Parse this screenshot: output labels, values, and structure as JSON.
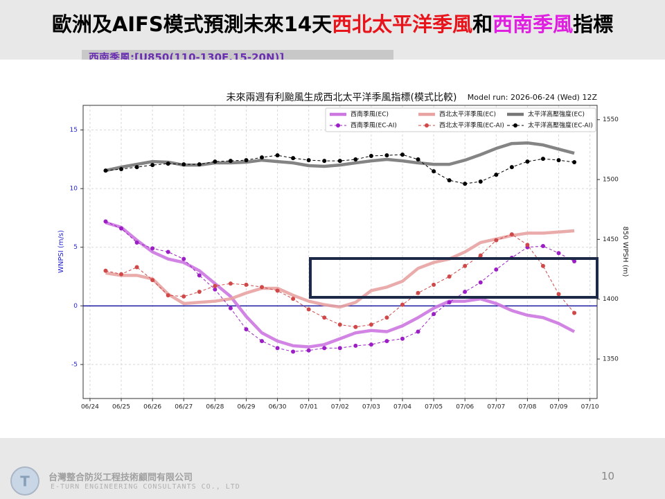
{
  "slide": {
    "title_parts": [
      {
        "text": "歐洲及AIFS模式預測未來14天",
        "color": "#000000"
      },
      {
        "text": "西北太平洋季風",
        "color": "#e8141c"
      },
      {
        "text": "和",
        "color": "#000000"
      },
      {
        "text": "西南季風",
        "color": "#e020e0"
      },
      {
        "text": "指標",
        "color": "#000000"
      }
    ],
    "subtitle": "西南季風:[U850(110-130E,15-20N)]",
    "company": "台灣整合防災工程技術顧問有限公司",
    "company_en": "E-TURN ENGINEERING CONSULTANTS CO., LTD",
    "page_number": 10
  },
  "chart_data": {
    "type": "line",
    "title": "未來兩週有利颱風生成西北太平洋季風指標(模式比較)",
    "annotation": "Model run: 2026-06-24 (Wed) 12Z",
    "ylabel": "WNPSI (m/s)",
    "y2label": "850 WPSH (m)",
    "x": [
      0.5,
      1,
      1.5,
      2,
      2.5,
      3,
      3.5,
      4,
      4.5,
      5,
      5.5,
      6,
      6.5,
      7,
      7.5,
      8,
      8.5,
      9,
      9.5,
      10,
      10.5,
      11,
      11.5,
      12,
      12.5,
      13,
      13.5,
      14,
      14.5,
      15,
      15.5
    ],
    "xlim": [
      -0.22,
      16.23
    ],
    "xticks": [
      {
        "value": 0,
        "label": "06/24"
      },
      {
        "value": 1,
        "label": "06/25"
      },
      {
        "value": 2,
        "label": "06/26"
      },
      {
        "value": 3,
        "label": "06/27"
      },
      {
        "value": 4,
        "label": "06/28"
      },
      {
        "value": 5,
        "label": "06/29"
      },
      {
        "value": 6,
        "label": "06/30"
      },
      {
        "value": 7,
        "label": "07/01"
      },
      {
        "value": 8,
        "label": "07/02"
      },
      {
        "value": 9,
        "label": "07/03"
      },
      {
        "value": 10,
        "label": "07/04"
      },
      {
        "value": 11,
        "label": "07/05"
      },
      {
        "value": 12,
        "label": "07/06"
      },
      {
        "value": 13,
        "label": "07/07"
      },
      {
        "value": 14,
        "label": "07/08"
      },
      {
        "value": 15,
        "label": "07/09"
      },
      {
        "value": 16,
        "label": "07/10"
      }
    ],
    "ylim": [
      -7.9,
      17.1
    ],
    "yticks": [
      -5,
      0,
      5,
      10,
      15
    ],
    "y2lim": [
      1317,
      1562
    ],
    "y2ticks": [
      1350,
      1400,
      1450,
      1500,
      1550
    ],
    "grid": true,
    "hline": 0,
    "legend": "upper right",
    "series": [
      {
        "name": "西南季風(EC)",
        "color": "#cc77e0",
        "style": "solid",
        "axis": "y",
        "values": [
          7.1,
          6.7,
          5.6,
          4.6,
          4.0,
          3.7,
          3.0,
          1.9,
          0.8,
          -0.9,
          -2.3,
          -3.0,
          -3.4,
          -3.5,
          -3.3,
          -2.8,
          -2.3,
          -2.1,
          -2.2,
          -1.7,
          -1.0,
          -0.2,
          0.4,
          0.4,
          0.6,
          0.2,
          -0.4,
          -0.8,
          -1.0,
          -1.5,
          -2.2
        ]
      },
      {
        "name": "西北太平洋季風(EC)",
        "color": "#e8a2a2",
        "style": "solid",
        "axis": "y",
        "values": [
          2.8,
          2.6,
          2.6,
          2.3,
          1.0,
          0.2,
          0.3,
          0.4,
          0.6,
          1.1,
          1.5,
          1.5,
          0.9,
          0.4,
          0.1,
          -0.1,
          0.3,
          1.3,
          1.6,
          2.1,
          3.2,
          3.7,
          4.0,
          4.6,
          5.4,
          5.7,
          6.0,
          6.2,
          6.2,
          6.3,
          6.4
        ]
      },
      {
        "name": "太平洋高壓強度(EC)",
        "color": "#777777",
        "style": "solid",
        "axis": "y2",
        "values": [
          1507.5,
          1510.4,
          1512.7,
          1515.0,
          1514.5,
          1512.1,
          1512.1,
          1513.9,
          1513.9,
          1514.5,
          1516.2,
          1515.0,
          1513.9,
          1511.6,
          1511.0,
          1512.1,
          1513.9,
          1515.6,
          1516.8,
          1515.6,
          1513.9,
          1512.7,
          1512.7,
          1516.2,
          1520.8,
          1526.0,
          1530.1,
          1530.6,
          1528.9,
          1525.4,
          1522.0
        ]
      },
      {
        "name": "西南季風(EC-AI)",
        "color": "#9b1fc4",
        "style": "dashed",
        "axis": "y",
        "values": [
          7.2,
          6.6,
          5.4,
          4.9,
          4.6,
          4.0,
          2.6,
          1.4,
          -0.2,
          -2.0,
          -3.0,
          -3.6,
          -3.9,
          -3.8,
          -3.6,
          -3.6,
          -3.4,
          -3.3,
          -3.0,
          -2.8,
          -2.2,
          -0.7,
          0.3,
          1.2,
          2.0,
          3.1,
          4.1,
          5.0,
          5.1,
          4.5,
          3.8
        ]
      },
      {
        "name": "西北太平洋季風(EC-AI)",
        "color": "#d04848",
        "style": "dashed",
        "axis": "y",
        "values": [
          3.0,
          2.7,
          3.3,
          2.2,
          0.9,
          0.8,
          1.2,
          1.7,
          1.9,
          1.8,
          1.6,
          1.3,
          0.6,
          -0.3,
          -1.0,
          -1.6,
          -1.8,
          -1.6,
          -1.0,
          0.1,
          1.1,
          1.8,
          2.5,
          3.4,
          4.3,
          5.6,
          6.1,
          5.2,
          3.4,
          1.0,
          -0.6
        ]
      },
      {
        "name": "太平洋高壓強度(EC-AI)",
        "color": "#000000",
        "style": "dashed",
        "axis": "y2",
        "values": [
          1507.5,
          1508.7,
          1510.4,
          1512.1,
          1513.3,
          1512.7,
          1512.7,
          1515.0,
          1515.6,
          1516.2,
          1518.5,
          1520.2,
          1517.9,
          1516.2,
          1515.6,
          1515.6,
          1516.8,
          1519.7,
          1520.2,
          1520.8,
          1516.8,
          1506.9,
          1499.4,
          1496.5,
          1498.3,
          1504.0,
          1510.4,
          1515.0,
          1517.3,
          1516.2,
          1514.5
        ]
      }
    ]
  }
}
